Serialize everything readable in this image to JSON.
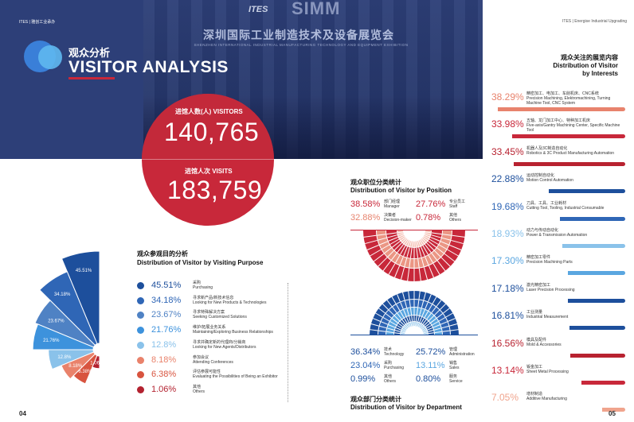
{
  "header": {
    "top_tag_left": "ITES | 雅创工业承办",
    "top_tag_right": "ITES | Energise Industrial Upgrading",
    "logo_ites": "ITES",
    "logo_simm": "SIMM",
    "exhibition_title_cn": "深圳国际工业制造技术及设备展览会",
    "exhibition_title_en": "SHENZHEN INTERNATIONAL INDUSTRIAL MANUFACTURING TECHNOLOGY AND EQUIPMENT EXHIBITION",
    "title_cn": "观众分析",
    "title_en": "VISITOR ANALYSIS"
  },
  "stats": {
    "visitors_label": "进馆人数(人)  VISITORS",
    "visitors_value": "140,765",
    "visits_label": "进馆人次  VISITS",
    "visits_value": "183,759"
  },
  "purpose": {
    "title_cn": "观众参观目的分析",
    "title_en": "Distribution of Visitor by Visiting Purpose",
    "items": [
      {
        "pct": "45.51%",
        "cn": "采购",
        "en": "Purchasing",
        "color": "#1d4f9c",
        "value": 45.51
      },
      {
        "pct": "34.18%",
        "cn": "寻求新产品/新技术信息",
        "en": "Looking for New Products & Technologies",
        "color": "#2f66b6",
        "value": 34.18
      },
      {
        "pct": "23.67%",
        "cn": "寻求特殊解决方案",
        "en": "Seeking Customized Solutions",
        "color": "#4f82c4",
        "value": 23.67
      },
      {
        "pct": "21.76%",
        "cn": "维护/拓展业务关系",
        "en": "Maintaining/Exploring Business Relationships",
        "color": "#3d92dc",
        "value": 21.76
      },
      {
        "pct": "12.8%",
        "cn": "寻求并确定新的代理商/分销商",
        "en": "Looking for New Agents/Distributors",
        "color": "#8ac2ea",
        "value": 12.8
      },
      {
        "pct": "8.18%",
        "cn": "参加会议",
        "en": "Attending Conferences",
        "color": "#e9826b",
        "value": 8.18
      },
      {
        "pct": "6.38%",
        "cn": "评估参展可能性",
        "en": "Evaluating the Possibilities of Being an Exhibitor",
        "color": "#d8543f",
        "value": 6.38
      },
      {
        "pct": "1.06%",
        "cn": "其他",
        "en": "Others",
        "color": "#b32230",
        "value": 1.06
      }
    ]
  },
  "position": {
    "title_cn": "观众职位分类统计",
    "title_en": "Distribution of Visitor by Position",
    "items": [
      {
        "pct": "38.58%",
        "cn": "部门经理",
        "en": "Manager",
        "color": "#c8283a"
      },
      {
        "pct": "27.76%",
        "cn": "专业员工",
        "en": "Staff",
        "color": "#c8283a"
      },
      {
        "pct": "32.88%",
        "cn": "决策者",
        "en": "Decision-maker",
        "color": "#e7846f"
      },
      {
        "pct": "0.78%",
        "cn": "其他",
        "en": "Others",
        "color": "#c8283a"
      }
    ]
  },
  "department": {
    "title_cn": "观众部门分类统计",
    "title_en": "Distribution of Visitor by Department",
    "items": [
      {
        "pct": "36.34%",
        "cn": "技术",
        "en": "Technology",
        "color": "#1d4f9c"
      },
      {
        "pct": "25.72%",
        "cn": "管理",
        "en": "Administration",
        "color": "#1d4f9c"
      },
      {
        "pct": "23.04%",
        "cn": "采购",
        "en": "Purchasing",
        "color": "#2f66b6"
      },
      {
        "pct": "13.11%",
        "cn": "销售",
        "en": "Sales",
        "color": "#5aa6e0"
      },
      {
        "pct": "0.99%",
        "cn": "其他",
        "en": "Others",
        "color": "#1d4f9c"
      },
      {
        "pct": "0.80%",
        "cn": "服务",
        "en": "Service",
        "color": "#1d4f9c"
      }
    ]
  },
  "interests": {
    "title_cn": "观众关注的展览内容",
    "title_en_1": "Distribution of Visitor",
    "title_en_2": "by Interests",
    "items": [
      {
        "pct": "38.29%",
        "cn": "精密加工、电加工、车削机床、CNC系统",
        "en": "Precision Machining, Elektromachining, Turning Machine Tool, CNC System",
        "color": "#e8836d",
        "value": 38.29
      },
      {
        "pct": "33.98%",
        "cn": "五轴、龙门加工中心、特种加工机床",
        "en": "Five-axis/Gantry Machining Center, Specific Machine Tool",
        "color": "#c8283a",
        "value": 33.98
      },
      {
        "pct": "33.45%",
        "cn": "机器人及3C制造自动化",
        "en": "Robotics & 3C Product Manufacturing Automation",
        "color": "#b82230",
        "value": 33.45
      },
      {
        "pct": "22.88%",
        "cn": "运动控制自动化",
        "en": "Motion Control Automation",
        "color": "#1d4f9c",
        "value": 22.88
      },
      {
        "pct": "19.68%",
        "cn": "刀具、工具、工业耗材",
        "en": "Cutting Tool, Tooling, Industrial Consumable",
        "color": "#2f66b6",
        "value": 19.68
      },
      {
        "pct": "18.93%",
        "cn": "动力与传动自动化",
        "en": "Power & Transmission Automation",
        "color": "#8ac2ea",
        "value": 18.93
      },
      {
        "pct": "17.30%",
        "cn": "精密加工零件",
        "en": "Precision Machining Parts",
        "color": "#5aa6e0",
        "value": 17.3
      },
      {
        "pct": "17.18%",
        "cn": "激光精密加工",
        "en": "Laser Precision Processing",
        "color": "#1d4f9c",
        "value": 17.18
      },
      {
        "pct": "16.81%",
        "cn": "工业测量",
        "en": "Industrial Measurement",
        "color": "#1d4f9c",
        "value": 16.81
      },
      {
        "pct": "16.56%",
        "cn": "模具及配件",
        "en": "Mold & Accessories",
        "color": "#b82230",
        "value": 16.56
      },
      {
        "pct": "13.14%",
        "cn": "钣金加工",
        "en": "Sheet Metal Processing",
        "color": "#c8283a",
        "value": 13.14
      },
      {
        "pct": "7.05%",
        "cn": "增材制造",
        "en": "Additive Manufacturing",
        "color": "#f0a48d",
        "value": 7.05
      }
    ]
  },
  "pages": {
    "left": "04",
    "right": "05"
  }
}
